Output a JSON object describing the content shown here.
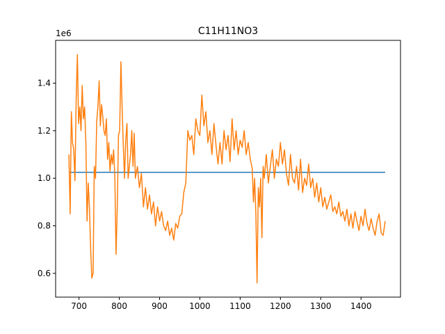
{
  "chart_data": {
    "type": "line",
    "title": "C11H11NO3",
    "xlabel": "",
    "ylabel": "",
    "y_offset_label": "1e6",
    "xlim": [
      642,
      1498
    ],
    "ylim": [
      500000,
      1580000
    ],
    "x_ticks": [
      700,
      800,
      900,
      1000,
      1100,
      1200,
      1300,
      1400
    ],
    "y_ticks": [
      600000,
      800000,
      1000000,
      1200000,
      1400000
    ],
    "x_tick_labels": [
      "700",
      "800",
      "900",
      "1000",
      "1100",
      "1200",
      "1300",
      "1400"
    ],
    "y_tick_labels": [
      "0.6",
      "0.8",
      "1.0",
      "1.2",
      "1.4"
    ],
    "grid": false,
    "series": [
      {
        "color": "#1f77b4",
        "x": [
          675,
          1460
        ],
        "y": [
          1025000,
          1025000
        ]
      },
      {
        "color": "#ff7f0e",
        "x": [
          675,
          678,
          681,
          684,
          687,
          690,
          693,
          696,
          699,
          702,
          705,
          708,
          711,
          714,
          717,
          720,
          723,
          726,
          729,
          732,
          735,
          738,
          741,
          744,
          747,
          750,
          753,
          756,
          759,
          762,
          765,
          768,
          771,
          774,
          777,
          780,
          783,
          786,
          789,
          792,
          795,
          798,
          801,
          804,
          807,
          810,
          813,
          816,
          819,
          822,
          825,
          828,
          831,
          834,
          837,
          840,
          845,
          850,
          855,
          860,
          865,
          870,
          875,
          880,
          885,
          890,
          895,
          900,
          905,
          910,
          915,
          920,
          925,
          930,
          935,
          940,
          945,
          950,
          955,
          960,
          965,
          970,
          975,
          980,
          985,
          990,
          995,
          1000,
          1005,
          1010,
          1015,
          1020,
          1025,
          1030,
          1035,
          1040,
          1045,
          1050,
          1055,
          1060,
          1065,
          1070,
          1075,
          1080,
          1085,
          1090,
          1095,
          1100,
          1105,
          1110,
          1115,
          1120,
          1125,
          1130,
          1133,
          1136,
          1139,
          1142,
          1145,
          1148,
          1151,
          1154,
          1157,
          1160,
          1165,
          1170,
          1175,
          1180,
          1185,
          1190,
          1195,
          1200,
          1205,
          1210,
          1215,
          1220,
          1225,
          1230,
          1235,
          1240,
          1245,
          1250,
          1255,
          1260,
          1265,
          1270,
          1275,
          1280,
          1285,
          1290,
          1295,
          1300,
          1305,
          1310,
          1315,
          1320,
          1325,
          1330,
          1335,
          1340,
          1345,
          1350,
          1355,
          1360,
          1365,
          1370,
          1375,
          1380,
          1385,
          1390,
          1395,
          1400,
          1405,
          1410,
          1415,
          1420,
          1425,
          1430,
          1435,
          1440,
          1445,
          1450,
          1455,
          1460
        ],
        "y": [
          1100000,
          850000,
          1280000,
          1150000,
          1120000,
          990000,
          1340000,
          1520000,
          1230000,
          1300000,
          1200000,
          1390000,
          1250000,
          1300000,
          1150000,
          820000,
          980000,
          870000,
          700000,
          580000,
          600000,
          1050000,
          1000000,
          1240000,
          1300000,
          1410000,
          1220000,
          1310000,
          1260000,
          1200000,
          1180000,
          1250000,
          1080000,
          1150000,
          1030000,
          1100000,
          1060000,
          1120000,
          1000000,
          680000,
          880000,
          1180000,
          1200000,
          1490000,
          1300000,
          1140000,
          1000000,
          1160000,
          1230000,
          1000000,
          1050000,
          1100000,
          1200000,
          1050000,
          1190000,
          1000000,
          1050000,
          960000,
          1020000,
          880000,
          960000,
          870000,
          930000,
          850000,
          900000,
          800000,
          880000,
          820000,
          860000,
          800000,
          780000,
          820000,
          760000,
          790000,
          740000,
          810000,
          790000,
          840000,
          850000,
          940000,
          980000,
          1200000,
          1160000,
          1180000,
          1100000,
          1250000,
          1200000,
          1180000,
          1350000,
          1220000,
          1280000,
          1150000,
          1200000,
          1100000,
          1230000,
          1140000,
          1060000,
          1150000,
          1060000,
          1200000,
          1120000,
          1180000,
          1070000,
          1250000,
          1120000,
          1200000,
          1100000,
          1160000,
          1130000,
          1200000,
          1100000,
          1150000,
          1080000,
          1040000,
          900000,
          1000000,
          850000,
          560000,
          960000,
          880000,
          1000000,
          750000,
          1050000,
          1000000,
          1100000,
          980000,
          1050000,
          1120000,
          1000000,
          1080000,
          1050000,
          1150000,
          1060000,
          1120000,
          1020000,
          970000,
          1100000,
          1000000,
          980000,
          1050000,
          950000,
          1080000,
          940000,
          1000000,
          970000,
          1060000,
          960000,
          1000000,
          920000,
          980000,
          900000,
          960000,
          880000,
          920000,
          870000,
          900000,
          930000,
          860000,
          880000,
          850000,
          900000,
          840000,
          860000,
          820000,
          870000,
          800000,
          850000,
          790000,
          860000,
          820000,
          780000,
          840000,
          800000,
          870000,
          810000,
          780000,
          830000,
          790000,
          760000,
          820000,
          850000,
          770000,
          760000,
          820000
        ]
      }
    ]
  }
}
